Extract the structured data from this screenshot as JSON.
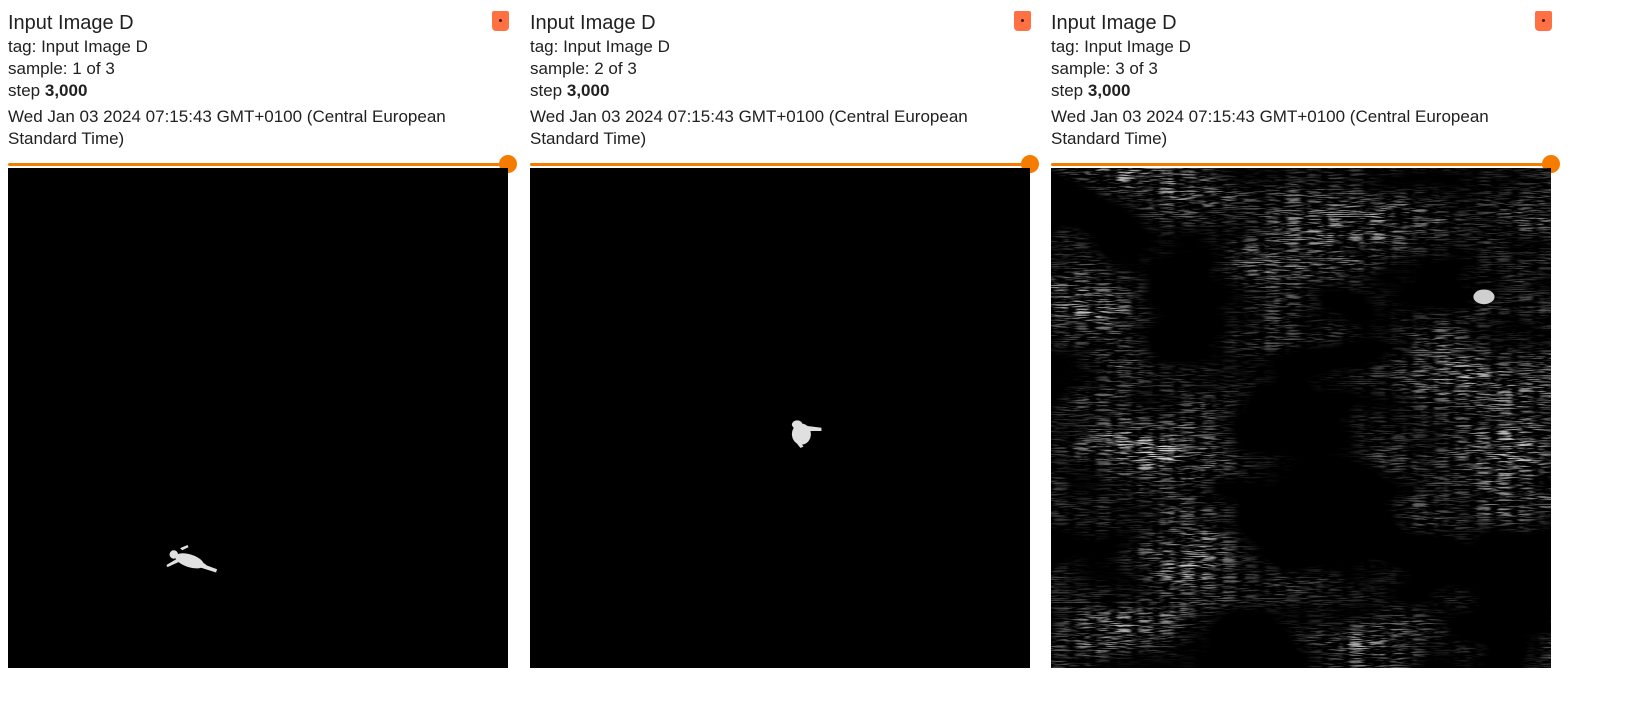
{
  "cards": [
    {
      "title": "Input Image D",
      "tag": "tag: Input Image D",
      "sample": "sample: 1 of 3",
      "step_prefix": "step",
      "step_value": "3,000",
      "timestamp": "Wed Jan 03 2024 07:15:43 GMT+0100 (Central European Standard Time)",
      "slider_fraction": 1.0,
      "image_content": "small white figure on black background"
    },
    {
      "title": "Input Image D",
      "tag": "tag: Input Image D",
      "sample": "sample: 2 of 3",
      "step_prefix": "step",
      "step_value": "3,000",
      "timestamp": "Wed Jan 03 2024 07:15:43 GMT+0100 (Central European Standard Time)",
      "slider_fraction": 1.0,
      "image_content": "small white figure on black background"
    },
    {
      "title": "Input Image D",
      "tag": "tag: Input Image D",
      "sample": "sample: 3 of 3",
      "step_prefix": "step",
      "step_value": "3,000",
      "timestamp": "Wed Jan 03 2024 07:15:43 GMT+0100 (Central European Standard Time)",
      "slider_fraction": 1.0,
      "image_content": "noisy grey cloud-like texture on black background"
    }
  ],
  "colors": {
    "accent": "#f57c00",
    "pin": "#ff7043",
    "image_bg": "#000000"
  },
  "icons": {
    "pin": "pin-icon"
  }
}
